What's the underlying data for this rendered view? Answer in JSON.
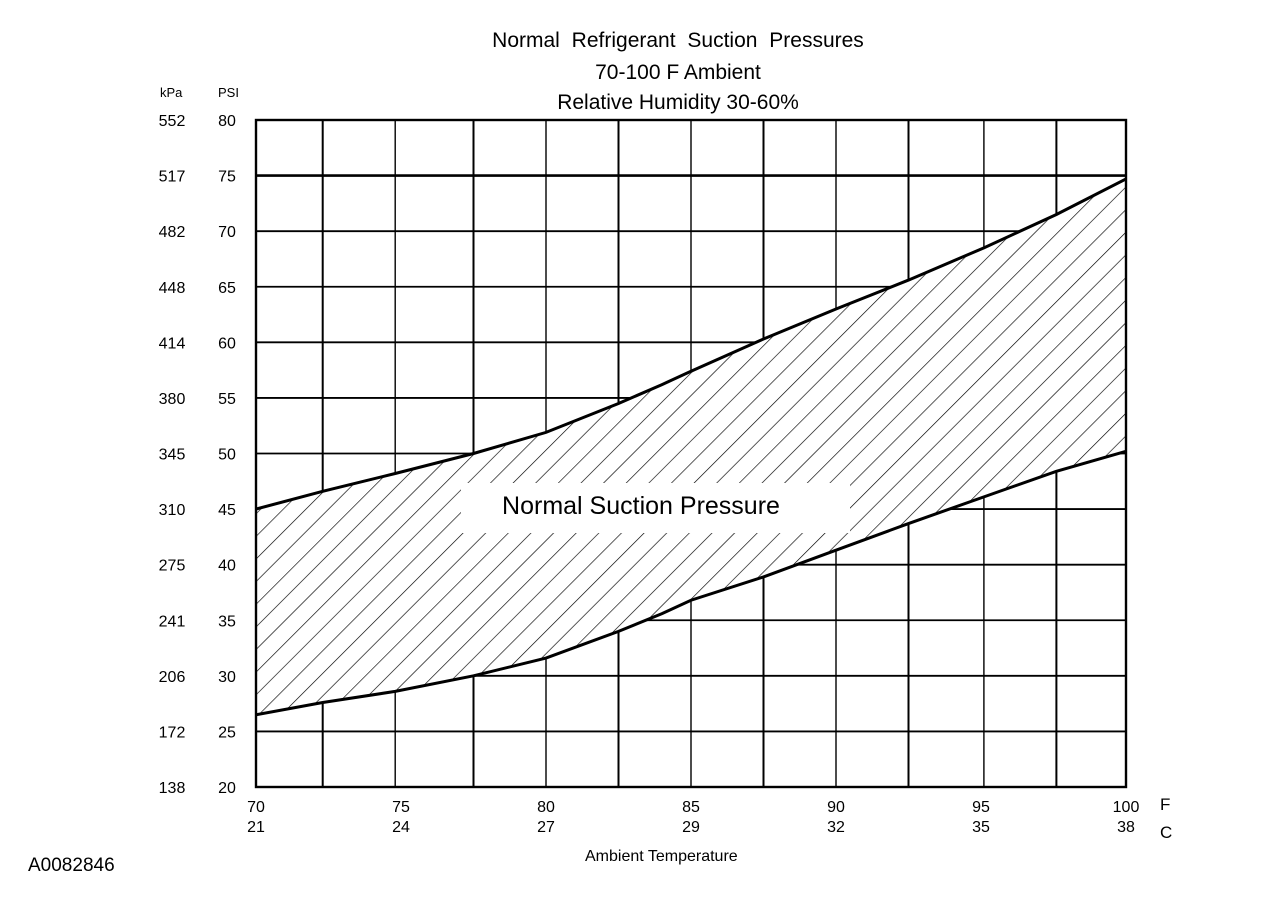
{
  "chart_data": {
    "type": "area",
    "title": "Normal  Refrigerant  Suction  Pressures",
    "subtitle": [
      "70-100 F Ambient",
      "Relative Humidity 30-60%"
    ],
    "xlabel": "Ambient Temperature",
    "x_unit_primary": "F",
    "x_unit_secondary": "C",
    "y_unit_primary": "PSI",
    "y_unit_secondary": "kPa",
    "xlim": [
      70,
      100
    ],
    "ylim": [
      20,
      80
    ],
    "x_ticks": [
      {
        "f": "70",
        "c": "21"
      },
      {
        "f": "75",
        "c": "24"
      },
      {
        "f": "80",
        "c": "27"
      },
      {
        "f": "85",
        "c": "29"
      },
      {
        "f": "90",
        "c": "32"
      },
      {
        "f": "95",
        "c": "35"
      },
      {
        "f": "100",
        "c": "38"
      }
    ],
    "y_ticks": [
      {
        "psi": "80",
        "kpa": "552"
      },
      {
        "psi": "75",
        "kpa": "517"
      },
      {
        "psi": "70",
        "kpa": "482"
      },
      {
        "psi": "65",
        "kpa": "448"
      },
      {
        "psi": "60",
        "kpa": "414"
      },
      {
        "psi": "55",
        "kpa": "380"
      },
      {
        "psi": "50",
        "kpa": "345"
      },
      {
        "psi": "45",
        "kpa": "310"
      },
      {
        "psi": "40",
        "kpa": "275"
      },
      {
        "psi": "35",
        "kpa": "241"
      },
      {
        "psi": "30",
        "kpa": "206"
      },
      {
        "psi": "25",
        "kpa": "172"
      },
      {
        "psi": "20",
        "kpa": "138"
      }
    ],
    "x_gridlines": [
      70,
      72.3,
      74.8,
      77.5,
      80,
      82.5,
      85,
      87.5,
      90,
      92.5,
      95.1,
      97.6,
      100
    ],
    "series": [
      {
        "name": "",
        "x": [
          70,
          72.3,
          74.8,
          77.5,
          80,
          82.5,
          84,
          85,
          87.5,
          90,
          92.5,
          95.1,
          97.6,
          100
        ],
        "upper": [
          45,
          46.6,
          48.2,
          50,
          51.9,
          54.5,
          56.2,
          57.4,
          60.3,
          63,
          65.6,
          68.5,
          71.5,
          74.7
        ],
        "lower": [
          26.5,
          27.6,
          28.6,
          30,
          31.6,
          34,
          35.6,
          36.8,
          38.9,
          41.3,
          43.7,
          46.1,
          48.4,
          50.2
        ]
      }
    ],
    "annotations": [
      "Normal Suction Pressure"
    ],
    "grid": true,
    "legend": "none"
  },
  "figure_id": "A0082846"
}
